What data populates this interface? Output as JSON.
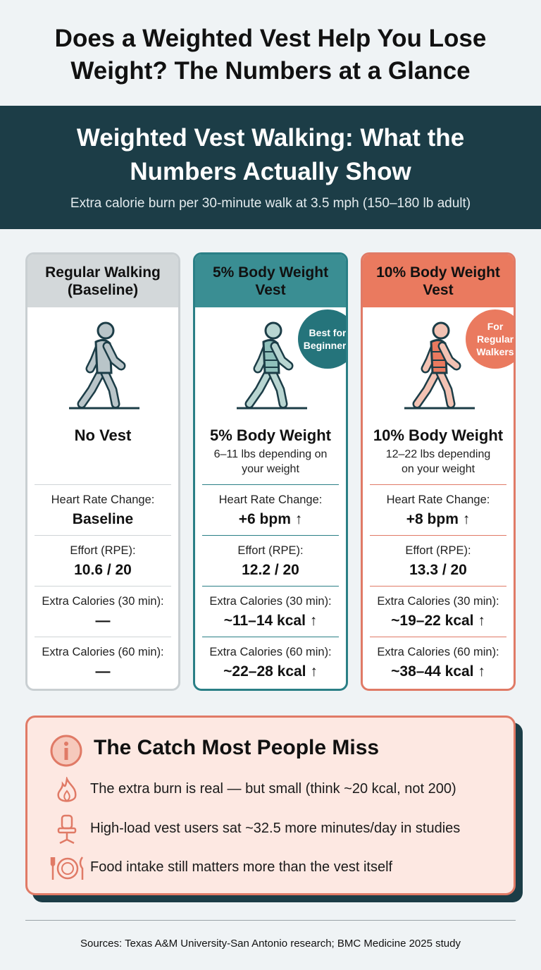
{
  "header": {
    "title": "Does a Weighted Vest Help You Lose Weight? The Numbers at a Glance"
  },
  "banner": {
    "title": "Weighted Vest Walking: What the Numbers Actually Show",
    "subtitle": "Extra calorie burn per 30-minute walk at 3.5 mph (150–180 lb adult)"
  },
  "cards": [
    {
      "header": "Regular Walking (Baseline)",
      "label": "No Vest",
      "metrics": [
        {
          "label": "Heart Rate Change:",
          "value": "Baseline"
        },
        {
          "label": "Effort (RPE):",
          "value": "10.6 / 20"
        },
        {
          "label": "Extra Calories (30 min):",
          "value": "—"
        },
        {
          "label": "Extra Calories (60 min):",
          "value": "—"
        }
      ]
    },
    {
      "header": "5% Body Weight Vest",
      "badge": "Best for Beginners",
      "label": "5% Body Weight",
      "detail": "6–11 lbs depending on your weight",
      "metrics": [
        {
          "label": "Heart Rate Change:",
          "value": "+6 bpm ↑"
        },
        {
          "label": "Effort (RPE):",
          "value": "12.2 / 20"
        },
        {
          "label": "Extra Calories (30 min):",
          "value": "~11–14 kcal ↑"
        },
        {
          "label": "Extra Calories (60 min):",
          "value": "~22–28 kcal ↑"
        }
      ]
    },
    {
      "header": "10% Body Weight Vest",
      "badge": "For Regular Walkers",
      "label": "10% Body Weight",
      "detail": "12–22 lbs depending on your weight",
      "metrics": [
        {
          "label": "Heart Rate Change:",
          "value": "+8 bpm ↑"
        },
        {
          "label": "Effort (RPE):",
          "value": "13.3 / 20"
        },
        {
          "label": "Extra Calories (30 min):",
          "value": "~19–22 kcal ↑"
        },
        {
          "label": "Extra Calories (60 min):",
          "value": "~38–44 kcal ↑"
        }
      ]
    }
  ],
  "catch": {
    "title": "The Catch Most People Miss",
    "items": [
      "The extra burn is real — but small (think ~20 kcal, not 200)",
      "High-load vest users sat ~32.5 more minutes/day in studies",
      "Food intake still matters more than the vest itself"
    ]
  },
  "footer": {
    "sources": "Sources: Texas A&M University-San Antonio research; BMC Medicine 2025 study"
  }
}
